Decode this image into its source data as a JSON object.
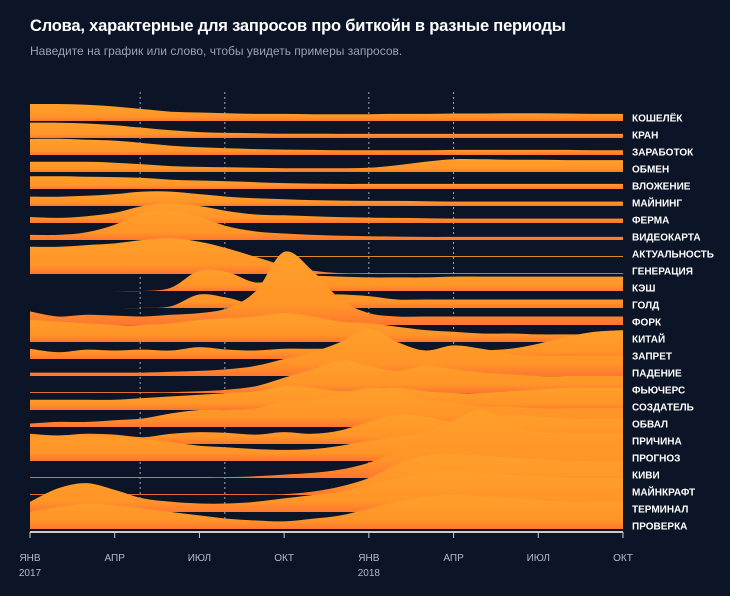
{
  "header": {
    "title": "Слова, характерные для запросов про биткойн в разные периоды",
    "subtitle": "Наведите на график или слово, чтобы увидеть примеры запросов."
  },
  "colors": {
    "background": "#0c1527",
    "ridge_top": "#ff9f2a",
    "ridge_bottom": "#ff7a2c",
    "axis": "#c9ccd4",
    "grid": "#c9ccd4"
  },
  "chart_data": {
    "type": "ridgeline",
    "title": "Слова, характерные для запросов про биткойн в разные периоды",
    "x_unit": "month index (0 = янв 2017)",
    "xlim": [
      0,
      21
    ],
    "x_ticks": [
      {
        "month": 0,
        "label": "ЯНВ",
        "year": "2017"
      },
      {
        "month": 3,
        "label": "АПР",
        "year": ""
      },
      {
        "month": 6,
        "label": "ИЮЛ",
        "year": ""
      },
      {
        "month": 9,
        "label": "ОКТ",
        "year": ""
      },
      {
        "month": 12,
        "label": "ЯНВ",
        "year": "2018"
      },
      {
        "month": 15,
        "label": "АПР",
        "year": ""
      },
      {
        "month": 18,
        "label": "ИЮЛ",
        "year": ""
      },
      {
        "month": 21,
        "label": "ОКТ",
        "year": ""
      }
    ],
    "grid_months": [
      3.9,
      6.9,
      12,
      15
    ],
    "y_unit": "relative query share (0–1), ridge height",
    "series": [
      {
        "name": "КОШЕЛЁК",
        "values": [
          1.0,
          1.0,
          0.95,
          0.85,
          0.7,
          0.55,
          0.5,
          0.45,
          0.42,
          0.42,
          0.4,
          0.4,
          0.4,
          0.42,
          0.42,
          0.44,
          0.44,
          0.45,
          0.45,
          0.44,
          0.42,
          0.42
        ]
      },
      {
        "name": "КРАН",
        "values": [
          0.9,
          0.9,
          0.85,
          0.75,
          0.6,
          0.45,
          0.35,
          0.3,
          0.28,
          0.25,
          0.25,
          0.24,
          0.24,
          0.24,
          0.24,
          0.24,
          0.24,
          0.24,
          0.24,
          0.24,
          0.24,
          0.24
        ]
      },
      {
        "name": "ЗАРАБОТОК",
        "values": [
          0.95,
          0.95,
          0.9,
          0.85,
          0.7,
          0.55,
          0.45,
          0.4,
          0.35,
          0.32,
          0.3,
          0.28,
          0.28,
          0.28,
          0.28,
          0.3,
          0.3,
          0.3,
          0.3,
          0.3,
          0.28,
          0.28
        ]
      },
      {
        "name": "ОБМЕН",
        "values": [
          0.6,
          0.6,
          0.6,
          0.55,
          0.45,
          0.35,
          0.3,
          0.28,
          0.25,
          0.22,
          0.22,
          0.22,
          0.25,
          0.4,
          0.6,
          0.75,
          0.75,
          0.72,
          0.72,
          0.7,
          0.7,
          0.7
        ]
      },
      {
        "name": "ВЛОЖЕНИЕ",
        "values": [
          0.75,
          0.75,
          0.72,
          0.7,
          0.65,
          0.55,
          0.5,
          0.45,
          0.4,
          0.35,
          0.32,
          0.3,
          0.3,
          0.3,
          0.3,
          0.3,
          0.3,
          0.3,
          0.3,
          0.3,
          0.3,
          0.3
        ]
      },
      {
        "name": "МАЙНИНГ",
        "values": [
          0.55,
          0.55,
          0.6,
          0.7,
          0.85,
          0.85,
          0.7,
          0.55,
          0.45,
          0.4,
          0.35,
          0.32,
          0.3,
          0.3,
          0.28,
          0.26,
          0.26,
          0.26,
          0.26,
          0.26,
          0.26,
          0.26
        ]
      },
      {
        "name": "ФЕРМА",
        "values": [
          0.35,
          0.3,
          0.4,
          0.6,
          1.0,
          1.15,
          1.0,
          0.7,
          0.5,
          0.45,
          0.4,
          0.35,
          0.32,
          0.3,
          0.28,
          0.26,
          0.26,
          0.26,
          0.26,
          0.26,
          0.26,
          0.26
        ]
      },
      {
        "name": "ВИДЕОКАРТА",
        "values": [
          0.3,
          0.3,
          0.45,
          0.9,
          1.6,
          1.7,
          1.35,
          0.8,
          0.5,
          0.38,
          0.3,
          0.25,
          0.22,
          0.2,
          0.18,
          0.18,
          0.18,
          0.18,
          0.18,
          0.18,
          0.18,
          0.18
        ]
      },
      {
        "name": "АКТУАЛЬНОСТЬ",
        "values": [
          0.0,
          0.0,
          0.0,
          0.05,
          0.05,
          0.05,
          0.05,
          0.05,
          0.05,
          0.05,
          0.05,
          0.05,
          0.05,
          0.05,
          0.05,
          0.05,
          0.05,
          0.05,
          0.05,
          0.05,
          0.05,
          0.05
        ]
      },
      {
        "name": "ГЕНЕРАЦИЯ",
        "values": [
          1.6,
          1.6,
          1.7,
          1.8,
          2.0,
          2.1,
          1.9,
          1.5,
          1.0,
          0.5,
          0.2,
          0.05,
          0.05,
          0.05,
          0.05,
          0.05,
          0.05,
          0.05,
          0.05,
          0.05,
          0.05,
          0.05
        ]
      },
      {
        "name": "КЭШ",
        "values": [
          0.0,
          0.0,
          0.0,
          0.0,
          0.0,
          0.2,
          1.2,
          1.1,
          0.5,
          0.8,
          0.9,
          0.85,
          0.8,
          0.8,
          0.8,
          0.85,
          0.85,
          0.85,
          0.85,
          0.85,
          0.85,
          0.85
        ]
      },
      {
        "name": "ГОЛД",
        "values": [
          0.0,
          0.0,
          0.0,
          0.0,
          0.0,
          0.1,
          0.8,
          0.6,
          0.3,
          1.4,
          0.85,
          0.8,
          0.7,
          0.5,
          0.5,
          0.5,
          0.5,
          0.5,
          0.5,
          0.5,
          0.5,
          0.5
        ]
      },
      {
        "name": "ФОРК",
        "values": [
          0.8,
          0.5,
          0.6,
          0.55,
          0.5,
          0.6,
          0.7,
          1.0,
          2.0,
          4.3,
          3.2,
          1.5,
          0.7,
          0.5,
          0.5,
          0.5,
          0.5,
          0.5,
          0.5,
          0.5,
          0.5,
          0.5
        ]
      },
      {
        "name": "КИТАЙ",
        "values": [
          1.3,
          1.2,
          1.1,
          1.0,
          1.0,
          1.1,
          1.3,
          1.4,
          1.5,
          1.7,
          1.5,
          1.2,
          1.1,
          0.9,
          0.7,
          0.6,
          0.5,
          0.5,
          0.45,
          0.45,
          0.45,
          0.45
        ]
      },
      {
        "name": "ЗАПРЕТ",
        "values": [
          0.6,
          0.4,
          0.55,
          0.5,
          0.55,
          0.5,
          0.7,
          0.55,
          0.5,
          0.6,
          0.6,
          0.6,
          0.6,
          0.6,
          0.5,
          0.45,
          0.5,
          0.6,
          0.9,
          1.3,
          1.6,
          1.7
        ]
      },
      {
        "name": "ПАДЕНИЕ",
        "values": [
          0.2,
          0.2,
          0.2,
          0.2,
          0.2,
          0.25,
          0.3,
          0.4,
          0.6,
          1.0,
          1.4,
          2.0,
          2.8,
          2.0,
          1.5,
          1.8,
          1.6,
          1.3,
          1.2,
          1.2,
          1.2,
          1.2
        ]
      },
      {
        "name": "ФЬЮЧЕРС",
        "values": [
          0.05,
          0.05,
          0.05,
          0.05,
          0.05,
          0.05,
          0.1,
          0.2,
          0.4,
          0.9,
          1.4,
          1.9,
          1.6,
          1.3,
          1.6,
          1.4,
          1.2,
          1.1,
          1.0,
          1.0,
          1.0,
          1.0
        ]
      },
      {
        "name": "СОЗДАТЕЛЬ",
        "values": [
          0.6,
          0.6,
          0.6,
          0.6,
          0.7,
          0.8,
          0.9,
          1.0,
          1.1,
          1.4,
          1.3,
          1.1,
          1.2,
          1.3,
          1.1,
          1.0,
          1.0,
          1.1,
          1.2,
          1.3,
          1.3,
          1.3
        ]
      },
      {
        "name": "ОБВАЛ",
        "values": [
          0.2,
          0.3,
          0.3,
          0.4,
          0.5,
          0.8,
          1.0,
          1.0,
          1.1,
          1.5,
          1.6,
          1.9,
          2.3,
          2.1,
          1.6,
          1.4,
          1.2,
          1.2,
          1.1,
          1.1,
          1.1,
          1.1
        ]
      },
      {
        "name": "ПРИЧИНА",
        "values": [
          0.6,
          0.5,
          0.6,
          0.55,
          0.4,
          0.6,
          0.7,
          0.65,
          0.55,
          0.7,
          0.6,
          0.8,
          1.3,
          1.7,
          1.6,
          1.3,
          1.4,
          1.7,
          1.6,
          1.5,
          1.5,
          1.5
        ]
      },
      {
        "name": "ПРОГНОЗ",
        "values": [
          1.4,
          1.5,
          1.5,
          1.4,
          1.3,
          1.1,
          0.9,
          0.8,
          0.7,
          0.65,
          0.7,
          0.9,
          1.2,
          1.4,
          1.6,
          1.8,
          1.9,
          1.8,
          1.7,
          1.6,
          1.6,
          1.6
        ]
      },
      {
        "name": "КИВИ",
        "values": [
          0.05,
          0.05,
          0.05,
          0.05,
          0.05,
          0.05,
          0.05,
          0.05,
          0.1,
          0.2,
          0.3,
          0.5,
          0.9,
          1.6,
          2.6,
          3.4,
          4.0,
          3.2,
          2.6,
          2.5,
          2.5,
          2.5
        ]
      },
      {
        "name": "МАЙНКРАФТ",
        "values": [
          0.05,
          0.05,
          0.05,
          0.05,
          0.05,
          0.05,
          0.05,
          0.05,
          0.05,
          0.05,
          0.2,
          0.5,
          1.0,
          1.8,
          2.3,
          2.4,
          2.3,
          2.2,
          2.1,
          2.0,
          2.0,
          2.0
        ]
      },
      {
        "name": "ТЕРМИНАЛ",
        "values": [
          0.6,
          1.4,
          1.7,
          1.3,
          0.8,
          0.6,
          0.5,
          0.5,
          0.6,
          0.8,
          1.0,
          1.2,
          1.6,
          2.0,
          2.3,
          2.4,
          2.3,
          2.2,
          2.1,
          2.0,
          2.0,
          2.0
        ]
      },
      {
        "name": "ПРОВЕРКА",
        "values": [
          1.0,
          1.3,
          1.5,
          1.4,
          1.2,
          1.0,
          0.8,
          0.6,
          0.5,
          0.45,
          0.6,
          0.8,
          1.2,
          1.6,
          1.9,
          2.0,
          1.9,
          1.8,
          1.7,
          1.6,
          1.6,
          1.6
        ]
      }
    ]
  }
}
